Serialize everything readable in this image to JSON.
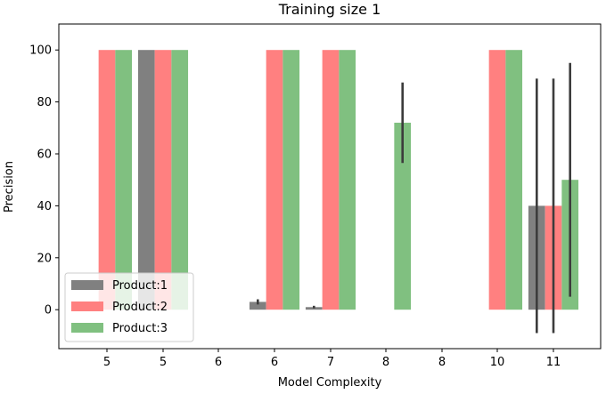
{
  "chart_data": {
    "type": "bar",
    "title": "Training size 1",
    "xlabel": "Model Complexity",
    "ylabel": "Precision",
    "categories": [
      "5",
      "5",
      "6",
      "6",
      "7",
      "8",
      "8",
      "10",
      "11"
    ],
    "ylim": [
      -15,
      110
    ],
    "yticks": [
      0,
      20,
      40,
      60,
      80,
      100
    ],
    "grid": false,
    "legend_position": "lower-left",
    "series": [
      {
        "name": "Product:1",
        "color": "#808080",
        "values": [
          null,
          100,
          null,
          3,
          1,
          null,
          null,
          null,
          40
        ],
        "errors": [
          null,
          null,
          null,
          1,
          0.5,
          null,
          null,
          null,
          49
        ]
      },
      {
        "name": "Product:2",
        "color": "#ff8080",
        "values": [
          100,
          100,
          null,
          100,
          100,
          null,
          null,
          100,
          40
        ],
        "errors": [
          null,
          null,
          null,
          null,
          null,
          null,
          null,
          null,
          49
        ]
      },
      {
        "name": "Product:3",
        "color": "#80c080",
        "values": [
          100,
          100,
          null,
          100,
          100,
          72,
          null,
          100,
          50
        ],
        "errors": [
          null,
          null,
          null,
          null,
          null,
          15.5,
          null,
          null,
          45
        ]
      }
    ]
  }
}
